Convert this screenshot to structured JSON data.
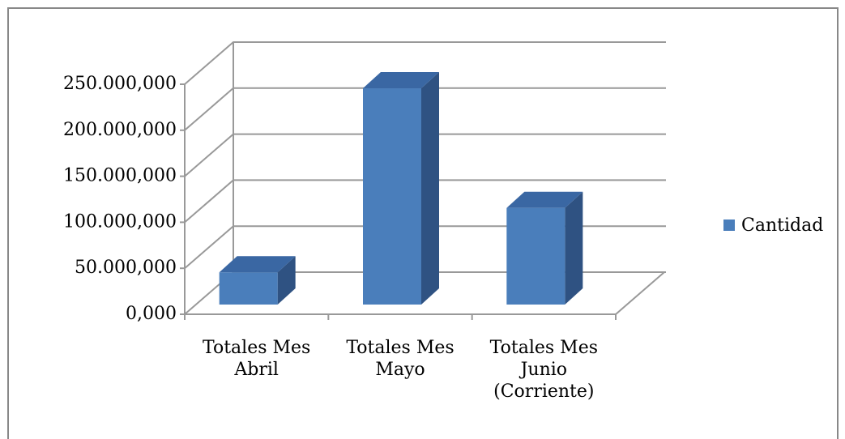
{
  "chart_data": {
    "type": "bar3d",
    "categories": [
      "Totales Mes Abril",
      "Totales Mes Mayo",
      "Totales Mes Junio (Corriente)"
    ],
    "series": [
      {
        "name": "Cantidad",
        "color": "#4a7ebb",
        "values": [
          35000000,
          235000000,
          105000000
        ]
      }
    ],
    "ylim": [
      0,
      250000000
    ],
    "yticks": [
      {
        "value": 0,
        "label": "0,000"
      },
      {
        "value": 50000000,
        "label": "50.000,000"
      },
      {
        "value": 100000000,
        "label": "100.000,000"
      },
      {
        "value": 150000000,
        "label": "150.000,000"
      },
      {
        "value": 200000000,
        "label": "200.000,000"
      },
      {
        "value": 250000000,
        "label": "250.000,000"
      }
    ],
    "grid": true,
    "legend": "right"
  }
}
